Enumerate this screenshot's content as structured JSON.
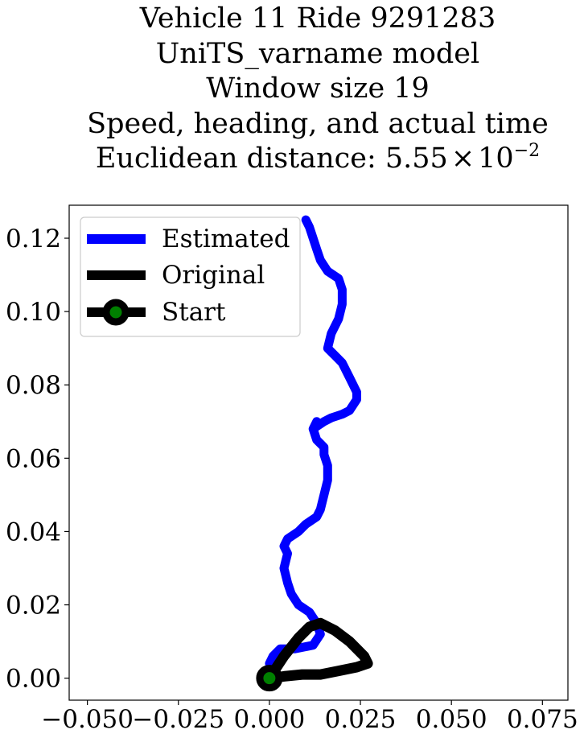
{
  "chart_data": {
    "type": "line",
    "title_lines": [
      "Vehicle 11 Ride 9291283",
      "UniTS_varname model",
      "Window size 19",
      "Speed, heading, and actual time"
    ],
    "distance_label": "Euclidean distance: 5.55",
    "distance_times": "×",
    "distance_base": "10",
    "distance_exp": "−2",
    "xlim": [
      -0.055,
      0.082
    ],
    "ylim": [
      -0.006,
      0.129
    ],
    "xticks": [
      -0.05,
      -0.025,
      0.0,
      0.025,
      0.05,
      0.075
    ],
    "xtick_labels": [
      "−0.050",
      "−0.025",
      "0.000",
      "0.025",
      "0.050",
      "0.075"
    ],
    "yticks": [
      0.0,
      0.02,
      0.04,
      0.06,
      0.08,
      0.1,
      0.12
    ],
    "ytick_labels": [
      "0.00",
      "0.02",
      "0.04",
      "0.06",
      "0.08",
      "0.10",
      "0.12"
    ],
    "legend_position": "upper-left",
    "series": [
      {
        "name": "Estimated",
        "color": "#0000ff",
        "x": [
          0.0,
          0.001,
          0.003,
          0.007,
          0.012,
          0.014,
          0.013,
          0.011,
          0.008,
          0.006,
          0.005,
          0.004,
          0.005,
          0.004,
          0.005,
          0.008,
          0.01,
          0.013,
          0.014,
          0.015,
          0.016,
          0.016,
          0.015,
          0.015,
          0.014,
          0.013,
          0.012,
          0.013,
          0.013,
          0.012,
          0.015,
          0.017,
          0.02,
          0.022,
          0.024,
          0.024,
          0.022,
          0.02,
          0.018,
          0.017,
          0.016,
          0.016,
          0.017,
          0.019,
          0.02,
          0.02,
          0.019,
          0.016,
          0.014,
          0.013,
          0.012,
          0.011,
          0.01
        ],
        "y": [
          0.004,
          0.006,
          0.008,
          0.008,
          0.009,
          0.012,
          0.015,
          0.018,
          0.02,
          0.023,
          0.026,
          0.03,
          0.034,
          0.036,
          0.038,
          0.04,
          0.042,
          0.044,
          0.046,
          0.05,
          0.054,
          0.058,
          0.061,
          0.063,
          0.064,
          0.065,
          0.068,
          0.069,
          0.07,
          0.068,
          0.07,
          0.071,
          0.072,
          0.073,
          0.076,
          0.078,
          0.082,
          0.086,
          0.088,
          0.089,
          0.09,
          0.09,
          0.094,
          0.098,
          0.102,
          0.106,
          0.109,
          0.111,
          0.114,
          0.117,
          0.12,
          0.123,
          0.125
        ]
      },
      {
        "name": "Original",
        "color": "#000000",
        "x": [
          0.0,
          0.004,
          0.008,
          0.011,
          0.014,
          0.018,
          0.022,
          0.026,
          0.027,
          0.024,
          0.019,
          0.014,
          0.009,
          0.004,
          0.0
        ],
        "y": [
          0.0,
          0.006,
          0.011,
          0.014,
          0.015,
          0.013,
          0.01,
          0.006,
          0.004,
          0.003,
          0.002,
          0.001,
          0.001,
          0.0005,
          0.0
        ]
      }
    ],
    "start": {
      "name": "Start",
      "x": 0.0,
      "y": 0.0,
      "marker_color": "#008000",
      "edge_color": "#000000"
    }
  }
}
